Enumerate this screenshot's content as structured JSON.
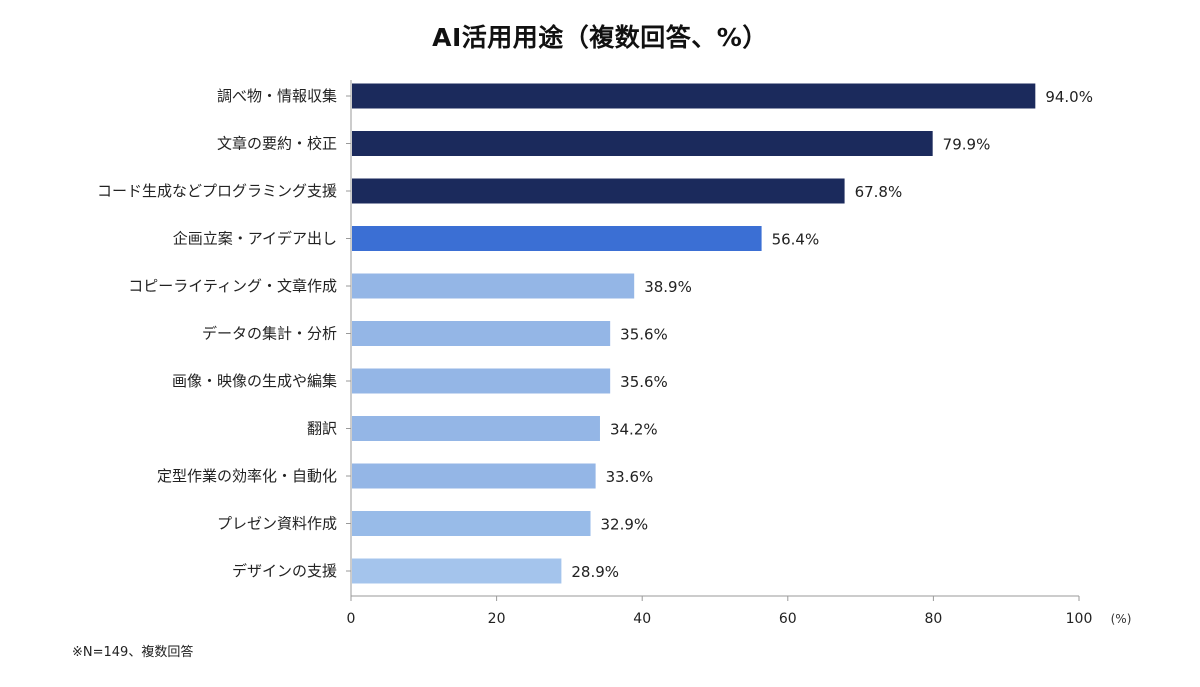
{
  "chart_data": {
    "type": "bar",
    "orientation": "horizontal",
    "title": "AI活用用途（複数回答、%）",
    "categories": [
      "調べ物・情報収集",
      "文章の要約・校正",
      "コード生成などプログラミング支援",
      "企画立案・アイデア出し",
      "コピーライティング・文章作成",
      "データの集計・分析",
      "画像・映像の生成や編集",
      "翻訳",
      "定型作業の効率化・自動化",
      "プレゼン資料作成",
      "デザインの支援"
    ],
    "values": [
      94.0,
      79.9,
      67.8,
      56.4,
      38.9,
      35.6,
      35.6,
      34.2,
      33.6,
      32.9,
      28.9
    ],
    "value_labels": [
      "94.0%",
      "79.9%",
      "67.8%",
      "56.4%",
      "38.9%",
      "35.6%",
      "35.6%",
      "34.2%",
      "33.6%",
      "32.9%",
      "28.9%"
    ],
    "bar_colors": [
      "#1b2a5c",
      "#1b2a5c",
      "#1b2a5c",
      "#3b6fd4",
      "#94b6e6",
      "#94b6e6",
      "#94b6e6",
      "#94b6e6",
      "#94b6e6",
      "#98bbe8",
      "#a4c4ec"
    ],
    "xlim": [
      0,
      100
    ],
    "xticks": [
      0,
      20,
      40,
      60,
      80,
      100
    ],
    "xunit": "(%)",
    "grid": false,
    "legend": "none"
  },
  "footnote": "※N=149、複数回答"
}
